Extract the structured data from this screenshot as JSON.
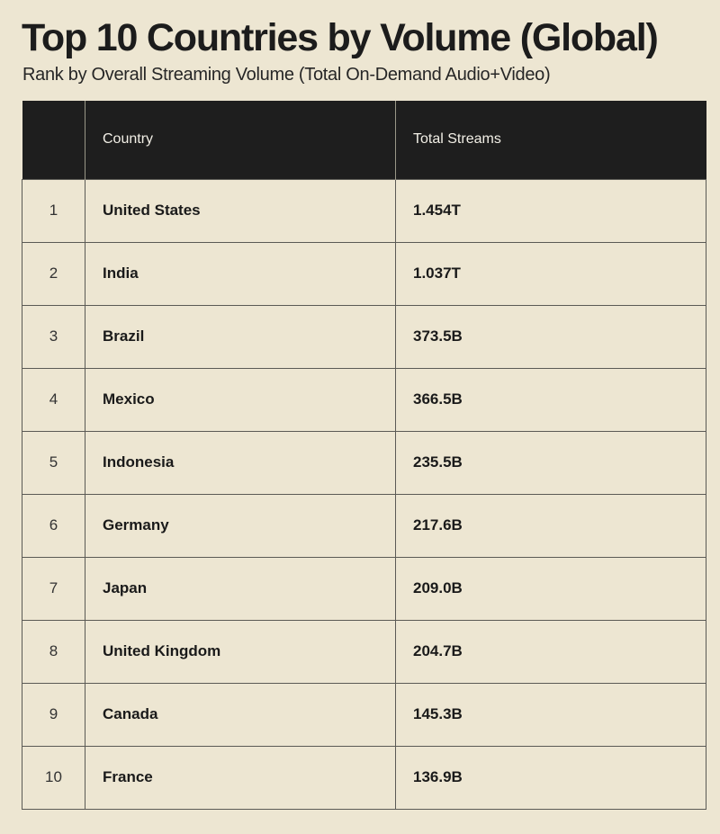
{
  "title": "Top 10 Countries by Volume (Global)",
  "subtitle": "Rank by Overall Streaming Volume (Total On-Demand Audio+Video)",
  "colors": {
    "background": "#ede6d2",
    "header_background": "#1e1e1e",
    "header_text": "#f2efe6",
    "text": "#1c1c1c",
    "border": "#5b5a55"
  },
  "chart_data": {
    "type": "table",
    "title": "Top 10 Countries by Volume (Global)",
    "subtitle": "Rank by Overall Streaming Volume (Total On-Demand Audio+Video)",
    "columns": [
      "",
      "Country",
      "Total Streams"
    ],
    "rows": [
      {
        "rank": "1",
        "country": "United States",
        "streams": "1.454T"
      },
      {
        "rank": "2",
        "country": "India",
        "streams": "1.037T"
      },
      {
        "rank": "3",
        "country": "Brazil",
        "streams": "373.5B"
      },
      {
        "rank": "4",
        "country": "Mexico",
        "streams": "366.5B"
      },
      {
        "rank": "5",
        "country": "Indonesia",
        "streams": "235.5B"
      },
      {
        "rank": "6",
        "country": "Germany",
        "streams": "217.6B"
      },
      {
        "rank": "7",
        "country": "Japan",
        "streams": "209.0B"
      },
      {
        "rank": "8",
        "country": "United Kingdom",
        "streams": "204.7B"
      },
      {
        "rank": "9",
        "country": "Canada",
        "streams": "145.3B"
      },
      {
        "rank": "10",
        "country": "France",
        "streams": "136.9B"
      }
    ]
  }
}
